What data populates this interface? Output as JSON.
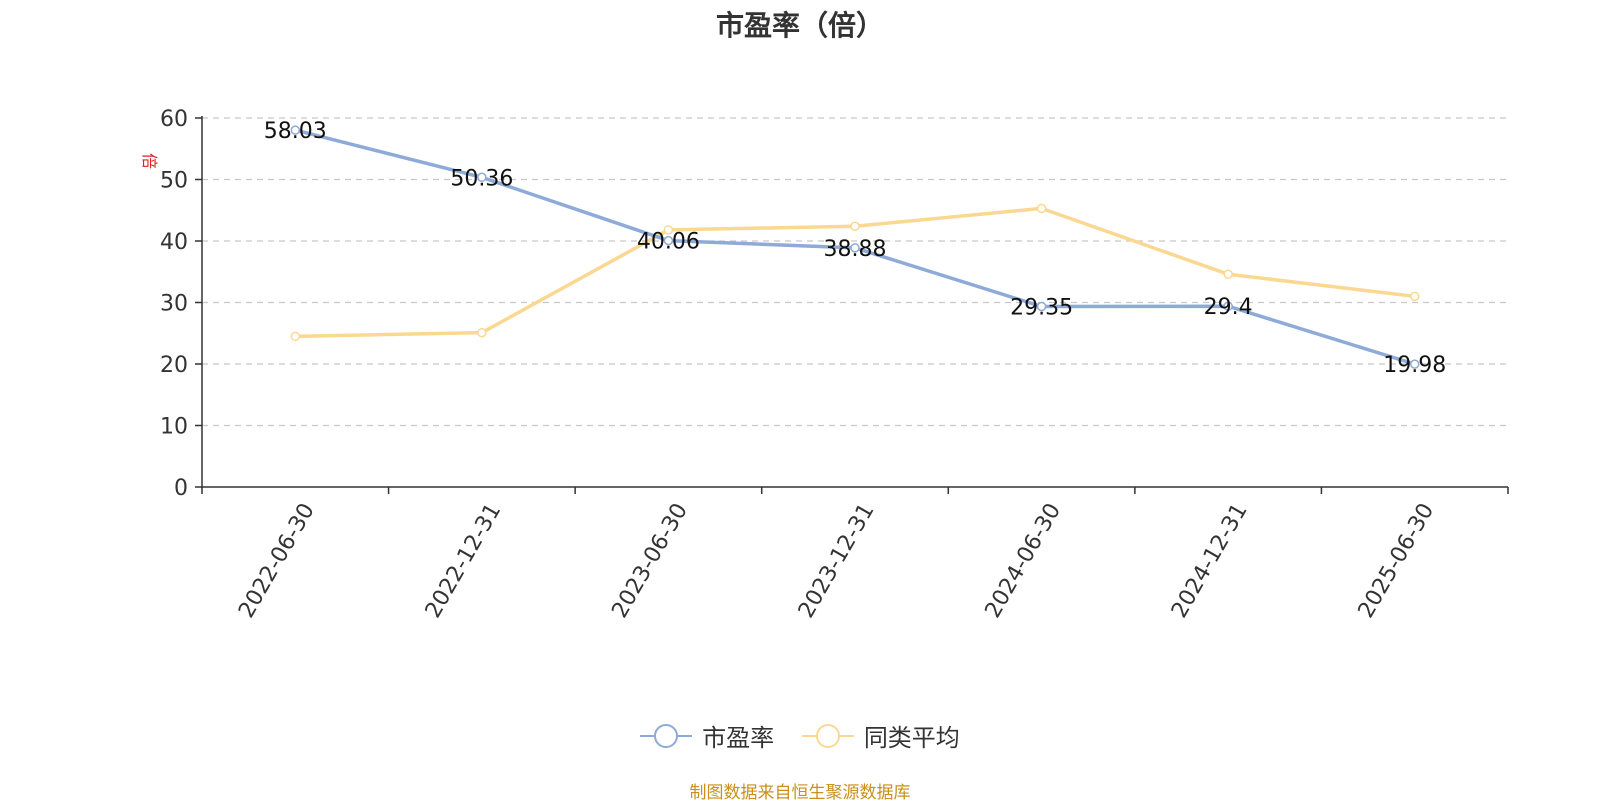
{
  "title": "市盈率（倍）",
  "source_note": "制图数据来自恒生聚源数据库",
  "colors": {
    "series_pe": "#8eaad8",
    "series_avg": "#fad891",
    "unit_label": "#dd2222",
    "grid": "#c8c8c8",
    "axis": "#333333"
  },
  "chart_data": {
    "type": "line",
    "title": "市盈率（倍）",
    "ylabel": "倍",
    "xlabel": "",
    "categories": [
      "2022-06-30",
      "2022-12-31",
      "2023-06-30",
      "2023-12-31",
      "2024-06-30",
      "2024-12-31",
      "2025-06-30"
    ],
    "ylim": [
      0,
      60
    ],
    "yticks": [
      0,
      10,
      20,
      30,
      40,
      50,
      60
    ],
    "grid": "horizontal dashed",
    "legend_position": "bottom",
    "series": [
      {
        "name": "市盈率",
        "values": [
          58.03,
          50.36,
          40.06,
          38.88,
          29.35,
          29.4,
          19.98
        ],
        "labels": [
          "58.03",
          "50.36",
          "40.06",
          "38.88",
          "29.35",
          "29.4",
          "19.98"
        ]
      },
      {
        "name": "同类平均",
        "values": [
          24.5,
          25.1,
          41.8,
          42.4,
          45.3,
          34.6,
          31.0
        ]
      }
    ]
  }
}
